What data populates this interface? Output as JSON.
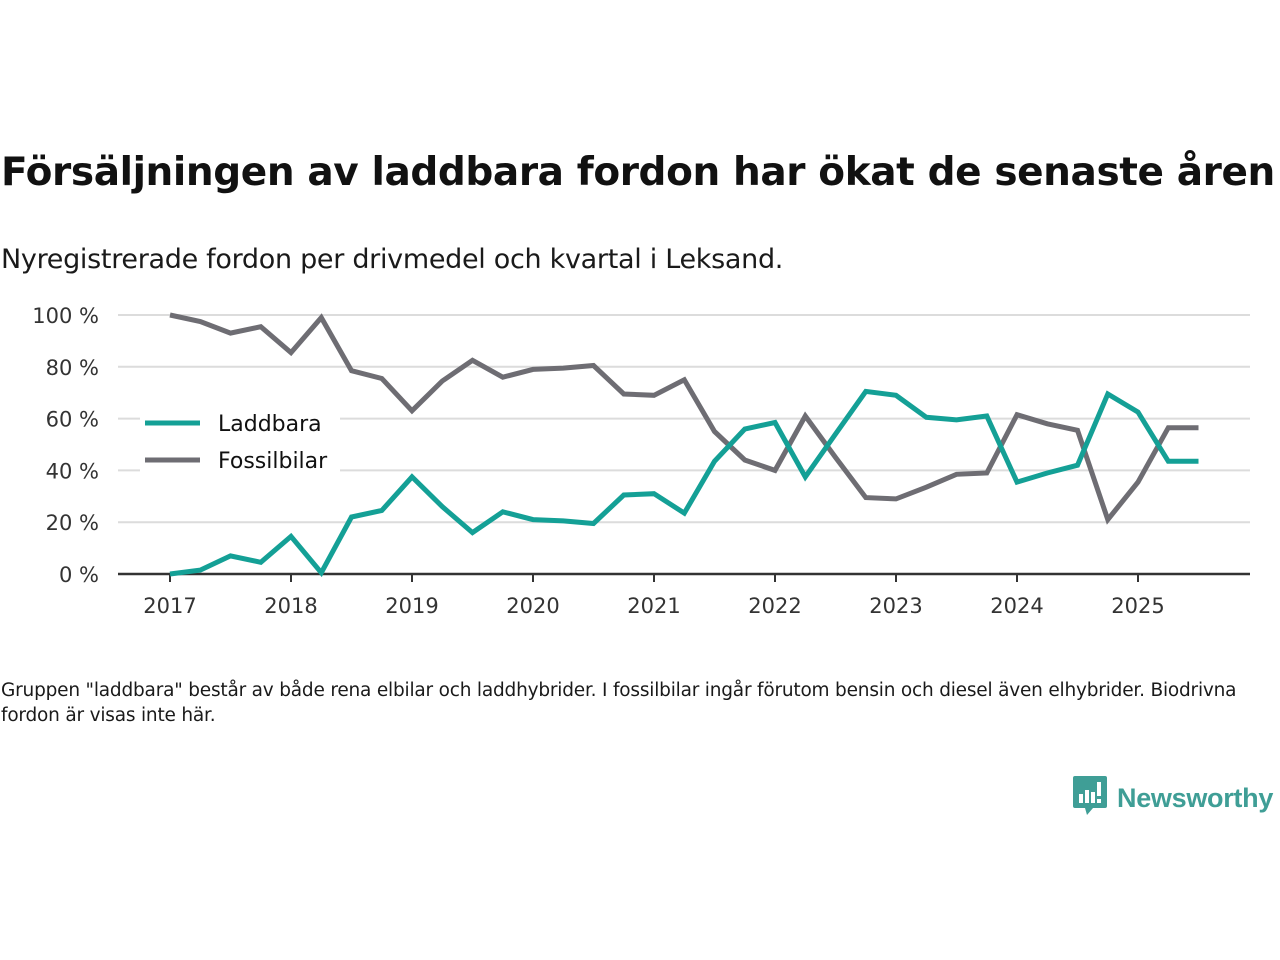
{
  "header": {
    "title": "Försäljningen av laddbara fordon har ökat de senaste åren",
    "subtitle": "Nyregistrerade fordon per drivmedel och kvartal i Leksand."
  },
  "footer": {
    "note": "Gruppen \"laddbara\" består av både rena elbilar och laddhybrider. I fossilbilar ingår förutom bensin och diesel även elhybrider. Biodrivna fordon är visas inte här.",
    "brand": "Newsworthy",
    "brand_icon": "bar-chart-speech-bubble-icon",
    "brand_color": "#3f9e96"
  },
  "chart_data": {
    "type": "line",
    "title": "Försäljningen av laddbara fordon har ökat de senaste åren",
    "subtitle": "Nyregistrerade fordon per drivmedel och kvartal i Leksand.",
    "xlabel": "",
    "ylabel": "",
    "ylim": [
      0,
      100
    ],
    "yticks": [
      0,
      20,
      40,
      60,
      80,
      100
    ],
    "ytick_labels": [
      "0 %",
      "20 %",
      "40 %",
      "60 %",
      "80 %",
      "100 %"
    ],
    "xticks": [
      "2017",
      "2018",
      "2019",
      "2020",
      "2021",
      "2022",
      "2023",
      "2024",
      "2025"
    ],
    "x": [
      "2017Q1",
      "2017Q2",
      "2017Q3",
      "2017Q4",
      "2018Q1",
      "2018Q2",
      "2018Q3",
      "2018Q4",
      "2019Q1",
      "2019Q2",
      "2019Q3",
      "2019Q4",
      "2020Q1",
      "2020Q2",
      "2020Q3",
      "2020Q4",
      "2021Q1",
      "2021Q2",
      "2021Q3",
      "2021Q4",
      "2022Q1",
      "2022Q2",
      "2022Q3",
      "2022Q4",
      "2023Q1",
      "2023Q2",
      "2023Q3",
      "2023Q4",
      "2024Q1",
      "2024Q2",
      "2024Q3",
      "2024Q4",
      "2025Q1",
      "2025Q2",
      "2025Q3"
    ],
    "grid": true,
    "legend": "left-middle",
    "series": [
      {
        "name": "Laddbara",
        "color": "#14a096",
        "values": [
          0,
          1.5,
          7,
          4.5,
          14.5,
          0.5,
          22,
          24.5,
          37.5,
          26,
          16,
          24,
          21,
          20.5,
          19.5,
          30.5,
          31,
          23.5,
          43.5,
          56,
          58.5,
          37.5,
          54,
          70.5,
          69,
          60.5,
          59.5,
          61,
          35.5,
          39,
          42,
          69.5,
          62.5,
          43.5,
          43.5
        ]
      },
      {
        "name": "Fossilbilar",
        "color": "#6e6d73",
        "values": [
          100,
          97.5,
          93,
          95.5,
          85.5,
          99,
          78.5,
          75.5,
          63,
          74.5,
          82.5,
          76,
          79,
          79.5,
          80.5,
          69.5,
          69,
          75,
          55,
          44,
          40,
          61,
          45,
          29.5,
          29,
          33.5,
          38.5,
          39,
          61.5,
          58,
          55.5,
          21,
          35.5,
          56.5,
          56.5
        ]
      }
    ]
  }
}
